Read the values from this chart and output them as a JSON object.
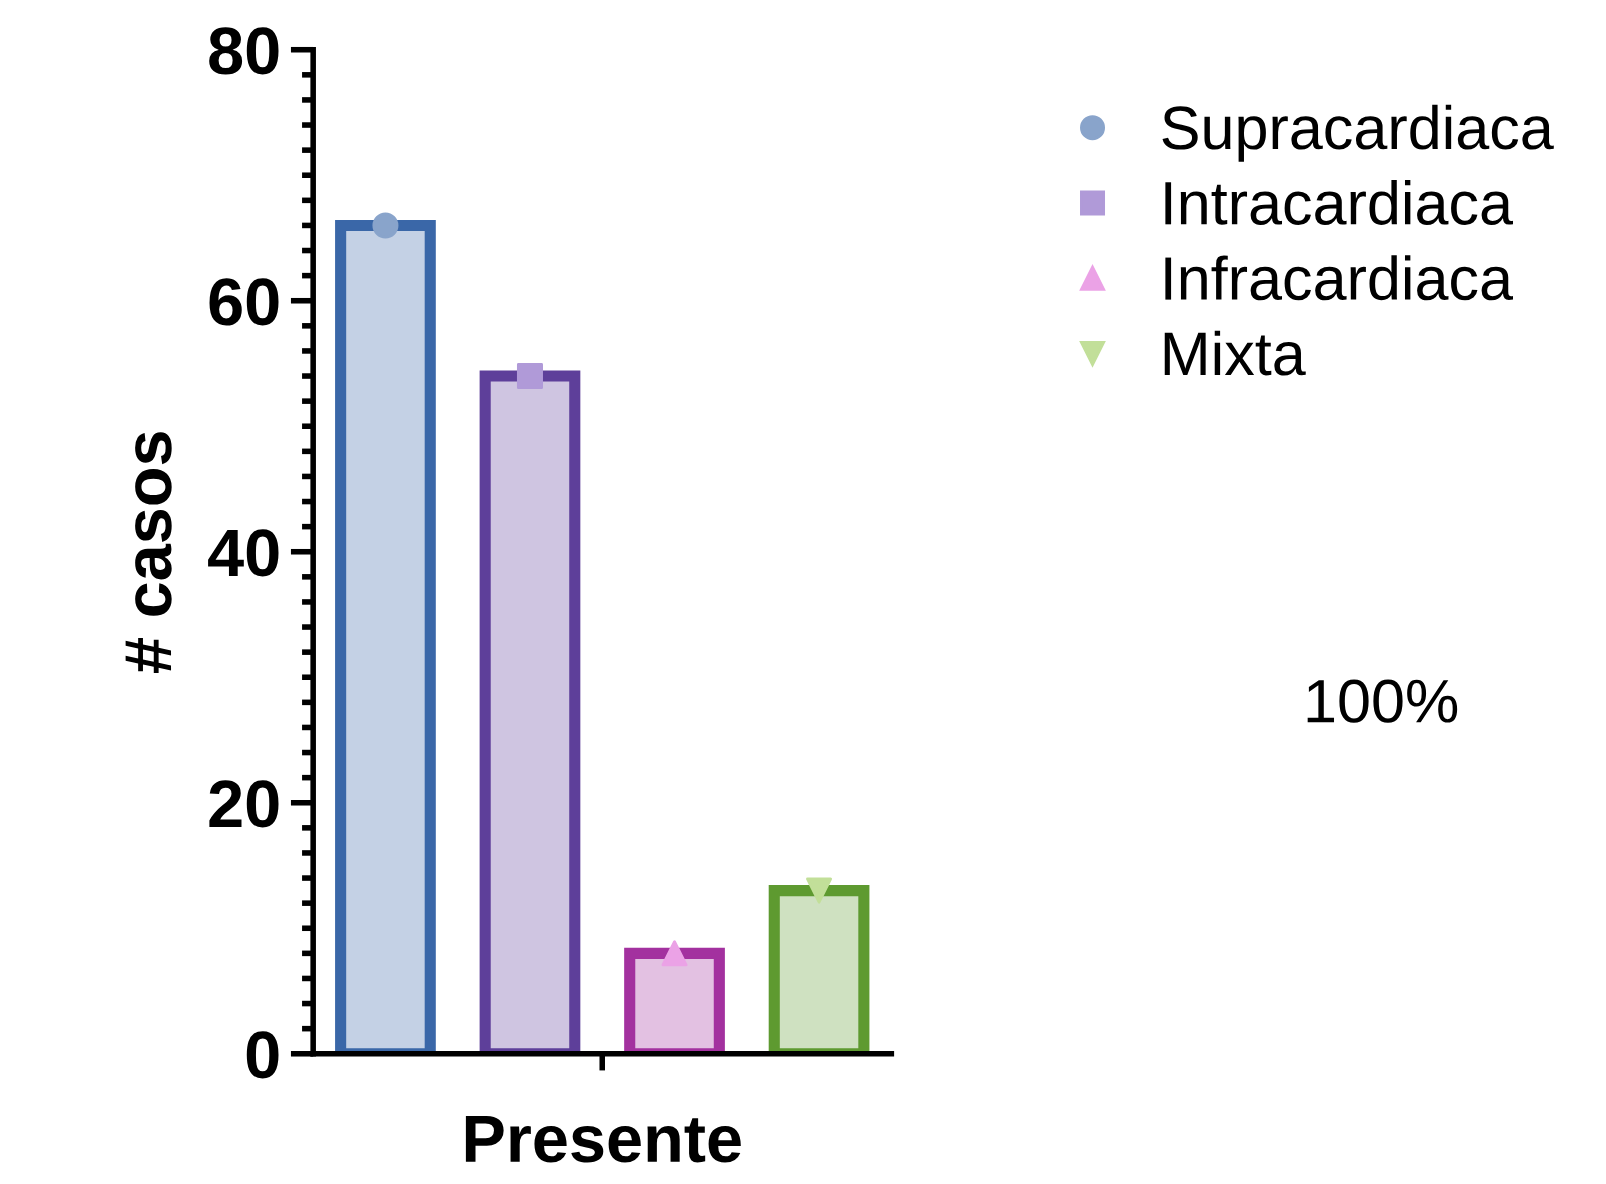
{
  "chart_data": {
    "type": "bar",
    "ylabel": "# casos",
    "xlabel": "Presente",
    "categories": [
      null,
      null,
      null,
      null
    ],
    "series": [
      {
        "values": [
          66,
          54,
          8,
          13
        ],
        "colors": [
          "#3a67a8",
          "#5e3f9a",
          "#a3319f",
          "#5e9a30"
        ]
      },
      {
        "type": "scatter",
        "name": "Supracardiaca",
        "color": "#89a4cb",
        "marker": "circle",
        "values": [
          66,
          null,
          null,
          null
        ]
      },
      {
        "type": "scatter",
        "name": "Intracardiaca",
        "color": "#b09ad8",
        "marker": "square",
        "values": [
          null,
          54,
          null,
          null
        ]
      },
      {
        "type": "scatter",
        "name": "Infracardiaca",
        "color": "#eba2e6",
        "marker": "triangle",
        "values": [
          null,
          null,
          8,
          null
        ]
      },
      {
        "type": "scatter",
        "name": "Mixta",
        "color": "#c2df99",
        "marker": "triangle_down",
        "values": [
          null,
          null,
          null,
          13
        ]
      }
    ],
    "ylim": [
      0,
      80
    ],
    "yticks": [
      0,
      20,
      40,
      60,
      80
    ],
    "grid": false,
    "legend": "top right",
    "annotations": [
      "100%"
    ]
  }
}
